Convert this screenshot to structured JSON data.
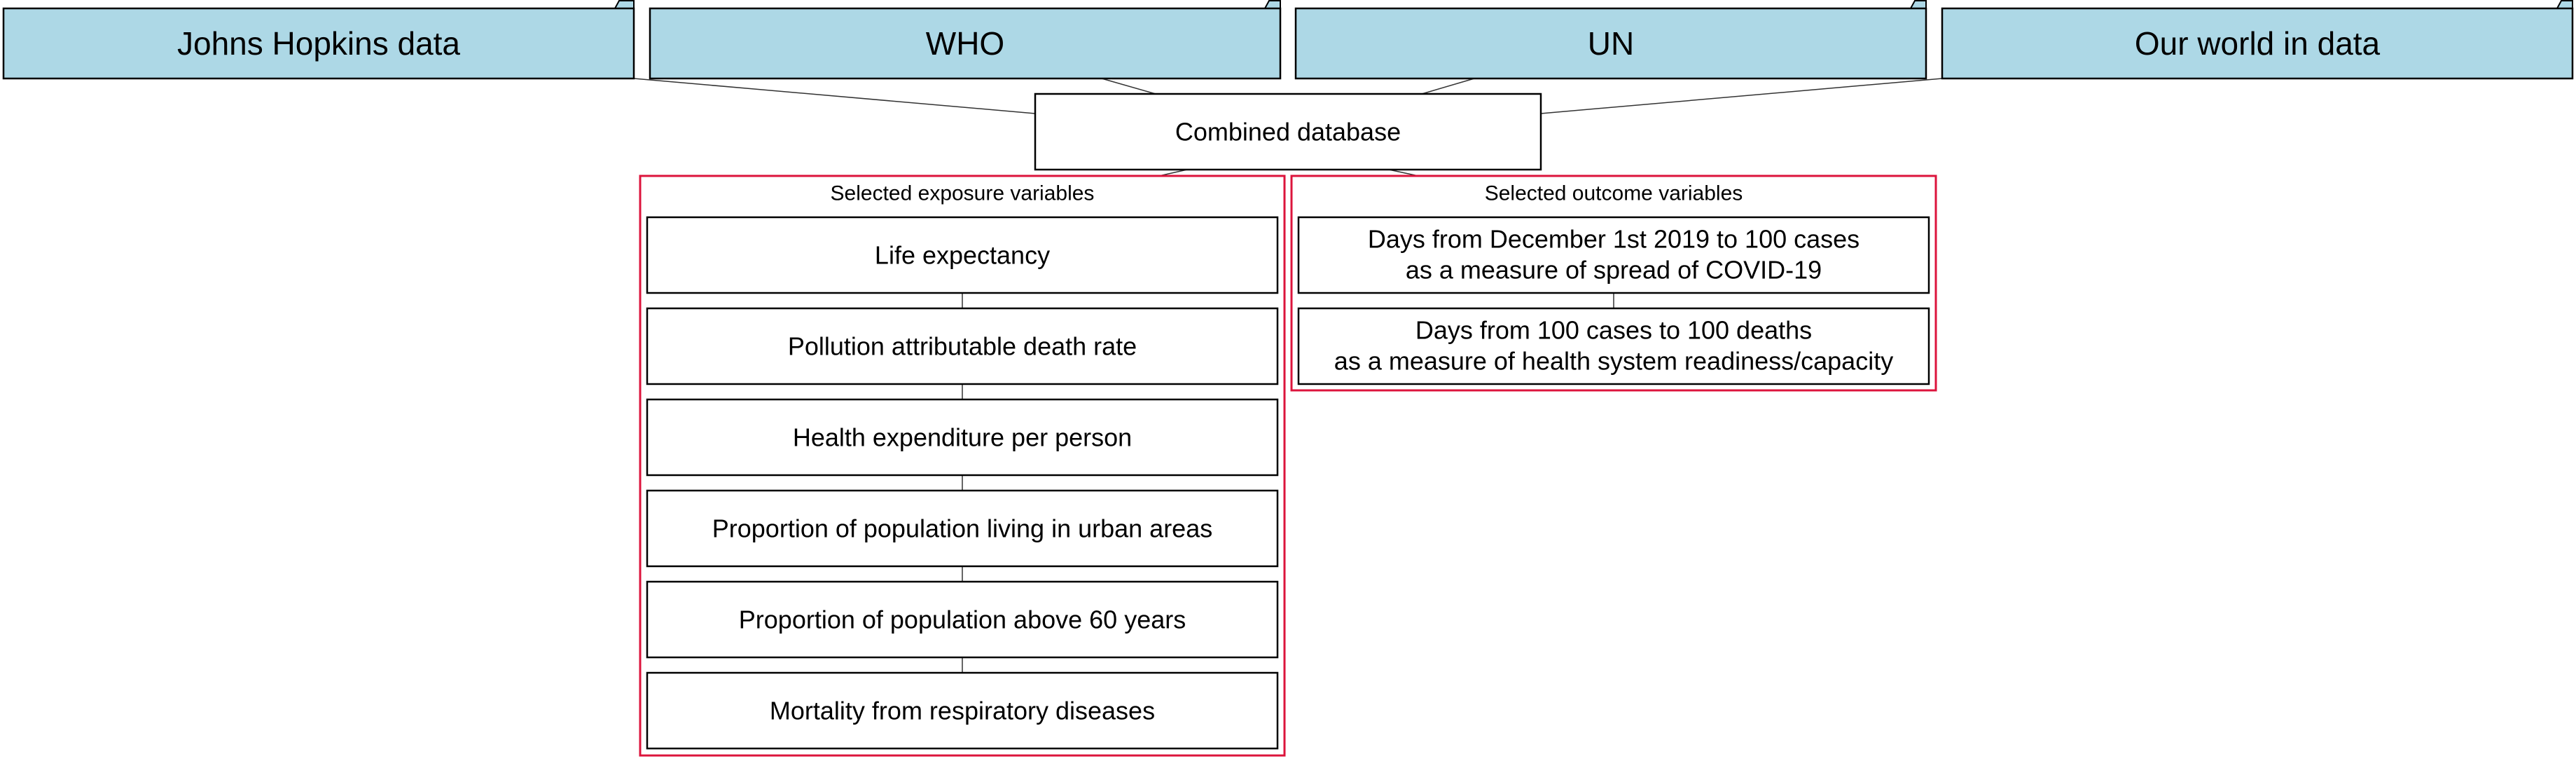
{
  "sources": [
    {
      "label": "Johns Hopkins data"
    },
    {
      "label": "WHO"
    },
    {
      "label": "UN"
    },
    {
      "label": "Our world in data"
    }
  ],
  "combined": {
    "label": "Combined database"
  },
  "exposure_group": {
    "title": "Selected exposure variables",
    "items": [
      {
        "lines": [
          "Life expectancy"
        ]
      },
      {
        "lines": [
          "Pollution attributable death rate"
        ]
      },
      {
        "lines": [
          "Health expenditure per person"
        ]
      },
      {
        "lines": [
          "Proportion of population living in urban areas"
        ]
      },
      {
        "lines": [
          "Proportion of population above 60 years"
        ]
      },
      {
        "lines": [
          "Mortality from respiratory diseases"
        ]
      }
    ]
  },
  "outcome_group": {
    "title": "Selected outcome variables",
    "items": [
      {
        "lines": [
          "Days from December 1st 2019 to 100 cases",
          "as a measure of spread of COVID-19"
        ]
      },
      {
        "lines": [
          "Days from 100 cases to 100 deaths",
          "as a measure of health system readiness/capacity"
        ]
      }
    ]
  },
  "colors": {
    "source_fill": "#add8e6",
    "group_border": "#dc143c",
    "box_fill": "#ffffff"
  }
}
